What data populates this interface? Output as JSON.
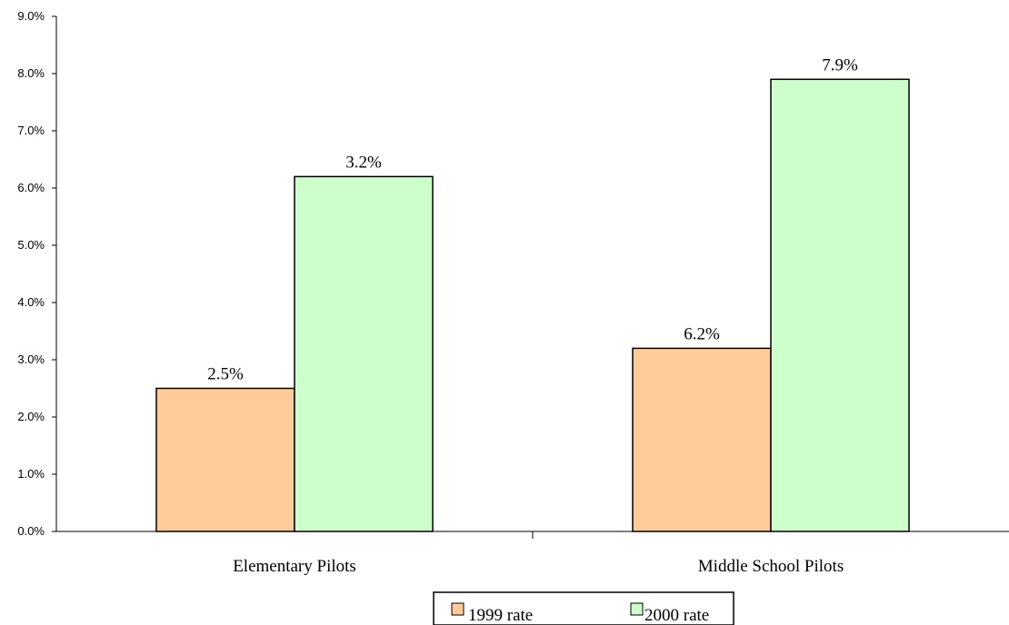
{
  "chart_data": {
    "type": "bar",
    "categories": [
      "Elementary Pilots",
      "Middle School Pilots"
    ],
    "series": [
      {
        "name": "1999 rate",
        "values": [
          2.5,
          3.2
        ],
        "color": "#FFCC99"
      },
      {
        "name": "2000 rate",
        "values": [
          6.2,
          7.9
        ],
        "color": "#CCFFCC"
      }
    ],
    "data_labels": [
      [
        "2.5%",
        "3.2%"
      ],
      [
        "6.2%",
        "7.9%"
      ]
    ],
    "y_ticks": [
      "0.0%",
      "1.0%",
      "2.0%",
      "3.0%",
      "4.0%",
      "5.0%",
      "6.0%",
      "7.0%",
      "8.0%",
      "9.0%"
    ],
    "ylim": [
      0,
      9
    ],
    "title": "",
    "xlabel": "",
    "ylabel": "",
    "grid": false,
    "legend_position": "bottom"
  }
}
